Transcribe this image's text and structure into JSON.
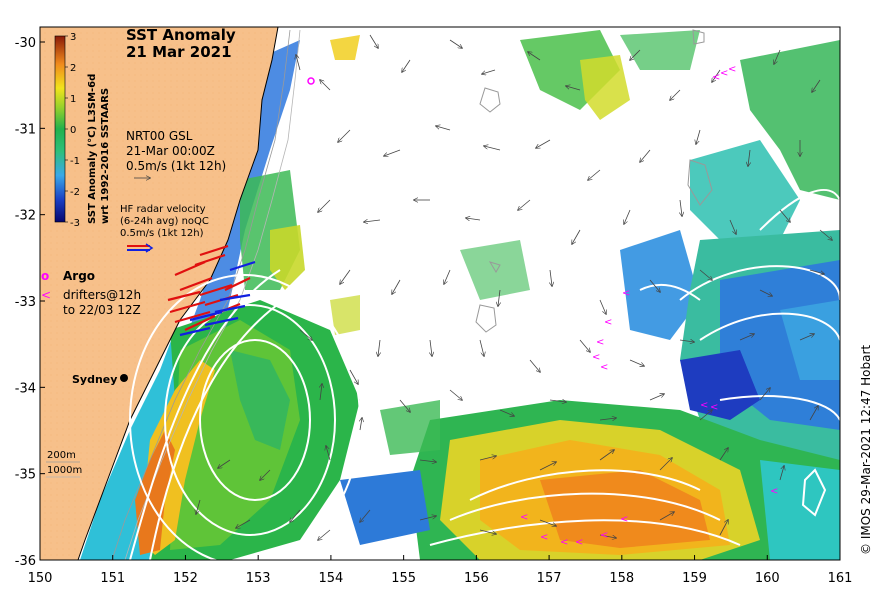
{
  "title": {
    "line1": "SST Anomaly",
    "line2": "21 Mar 2021"
  },
  "colorbar": {
    "label_line1": "SST Anomaly (°C) L3SM-6d",
    "label_line2": "wrt 1992-2016 SSTAARS",
    "ticks": [
      "3",
      "2",
      "1",
      "0",
      "-1",
      "-2",
      "-3"
    ],
    "range": [
      -3,
      3
    ],
    "colors": [
      "#08088a",
      "#2a6fd6",
      "#3cc2e8",
      "#23b14d",
      "#8fd12a",
      "#f4e21c",
      "#f08a1c",
      "#a0300e",
      "#7a1a08"
    ]
  },
  "legend": {
    "nrt_line1": "NRT00 GSL",
    "nrt_line2": "21-Mar 00:00Z",
    "nrt_line3": "0.5m/s (1kt 12h)",
    "hf_line1": "HF radar velocity",
    "hf_line2": "(6-24h avg) noQC",
    "hf_line3": "0.5m/s (1kt 12h)",
    "argo_symbol": "o",
    "argo_label": "Argo",
    "drifter_symbol": "<",
    "drifter_line1": "drifters@12h",
    "drifter_line2": "to 22/03 12Z",
    "city": "Sydney",
    "depth_200": "200m",
    "depth_1000": "1000m"
  },
  "axes": {
    "x_ticks": [
      "150",
      "151",
      "152",
      "153",
      "154",
      "155",
      "156",
      "157",
      "158",
      "159",
      "160",
      "161"
    ],
    "y_ticks": [
      "-30",
      "-31",
      "-32",
      "-33",
      "-34",
      "-35",
      "-36"
    ]
  },
  "credit": "© IMOS 29-Mar-2021 12:47 Hobart",
  "colors": {
    "land": "#f7c08a",
    "hf_red": "#e01010",
    "hf_blue": "#1020e0",
    "drifter": "#ff00ff",
    "contour": "#ffffff"
  }
}
